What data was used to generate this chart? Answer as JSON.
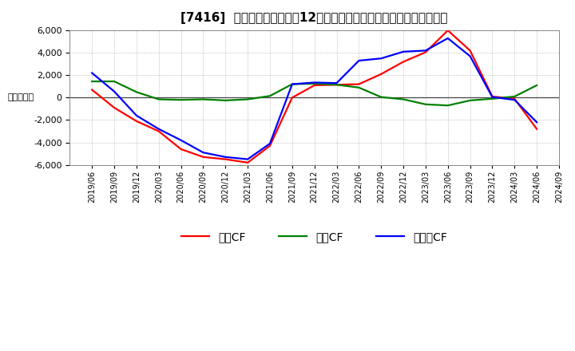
{
  "title": "[7416]  キャッシュフローの12か月移動合計の対前年同期増減額の推移",
  "ylabel": "（百万円）",
  "background_color": "#ffffff",
  "plot_background_color": "#ffffff",
  "grid_color": "#aaaaaa",
  "ylim": [
    -6000,
    6000
  ],
  "yticks": [
    -6000,
    -4000,
    -2000,
    0,
    2000,
    4000,
    6000
  ],
  "x_labels": [
    "2019/06",
    "2019/09",
    "2019/12",
    "2020/03",
    "2020/06",
    "2020/09",
    "2020/12",
    "2021/03",
    "2021/06",
    "2021/09",
    "2021/12",
    "2022/03",
    "2022/06",
    "2022/09",
    "2022/12",
    "2023/03",
    "2023/06",
    "2023/09",
    "2023/12",
    "2024/03",
    "2024/06",
    "2024/09"
  ],
  "operating_cf": [
    700,
    -900,
    -2100,
    -3000,
    -4600,
    -5300,
    -5500,
    -5800,
    -4300,
    0,
    1100,
    1150,
    1200,
    2100,
    3200,
    4050,
    6000,
    4200,
    100,
    -100,
    -2800,
    null
  ],
  "investing_cf": [
    1450,
    1450,
    500,
    -150,
    -200,
    -150,
    -250,
    -150,
    150,
    1200,
    1250,
    1150,
    900,
    50,
    -150,
    -600,
    -700,
    -250,
    -100,
    100,
    1100,
    null
  ],
  "free_cf": [
    2200,
    550,
    -1600,
    -2800,
    -3800,
    -4900,
    -5300,
    -5500,
    -4100,
    1200,
    1350,
    1300,
    3300,
    3500,
    4100,
    4200,
    5300,
    3700,
    50,
    -200,
    -2200,
    null
  ],
  "line_colors": {
    "operating": "#ff0000",
    "investing": "#008000",
    "free": "#0000ff"
  },
  "legend_labels": [
    "営業CF",
    "投資CF",
    "フリーCF"
  ],
  "title_fontsize": 11,
  "axis_fontsize": 8,
  "legend_fontsize": 10
}
